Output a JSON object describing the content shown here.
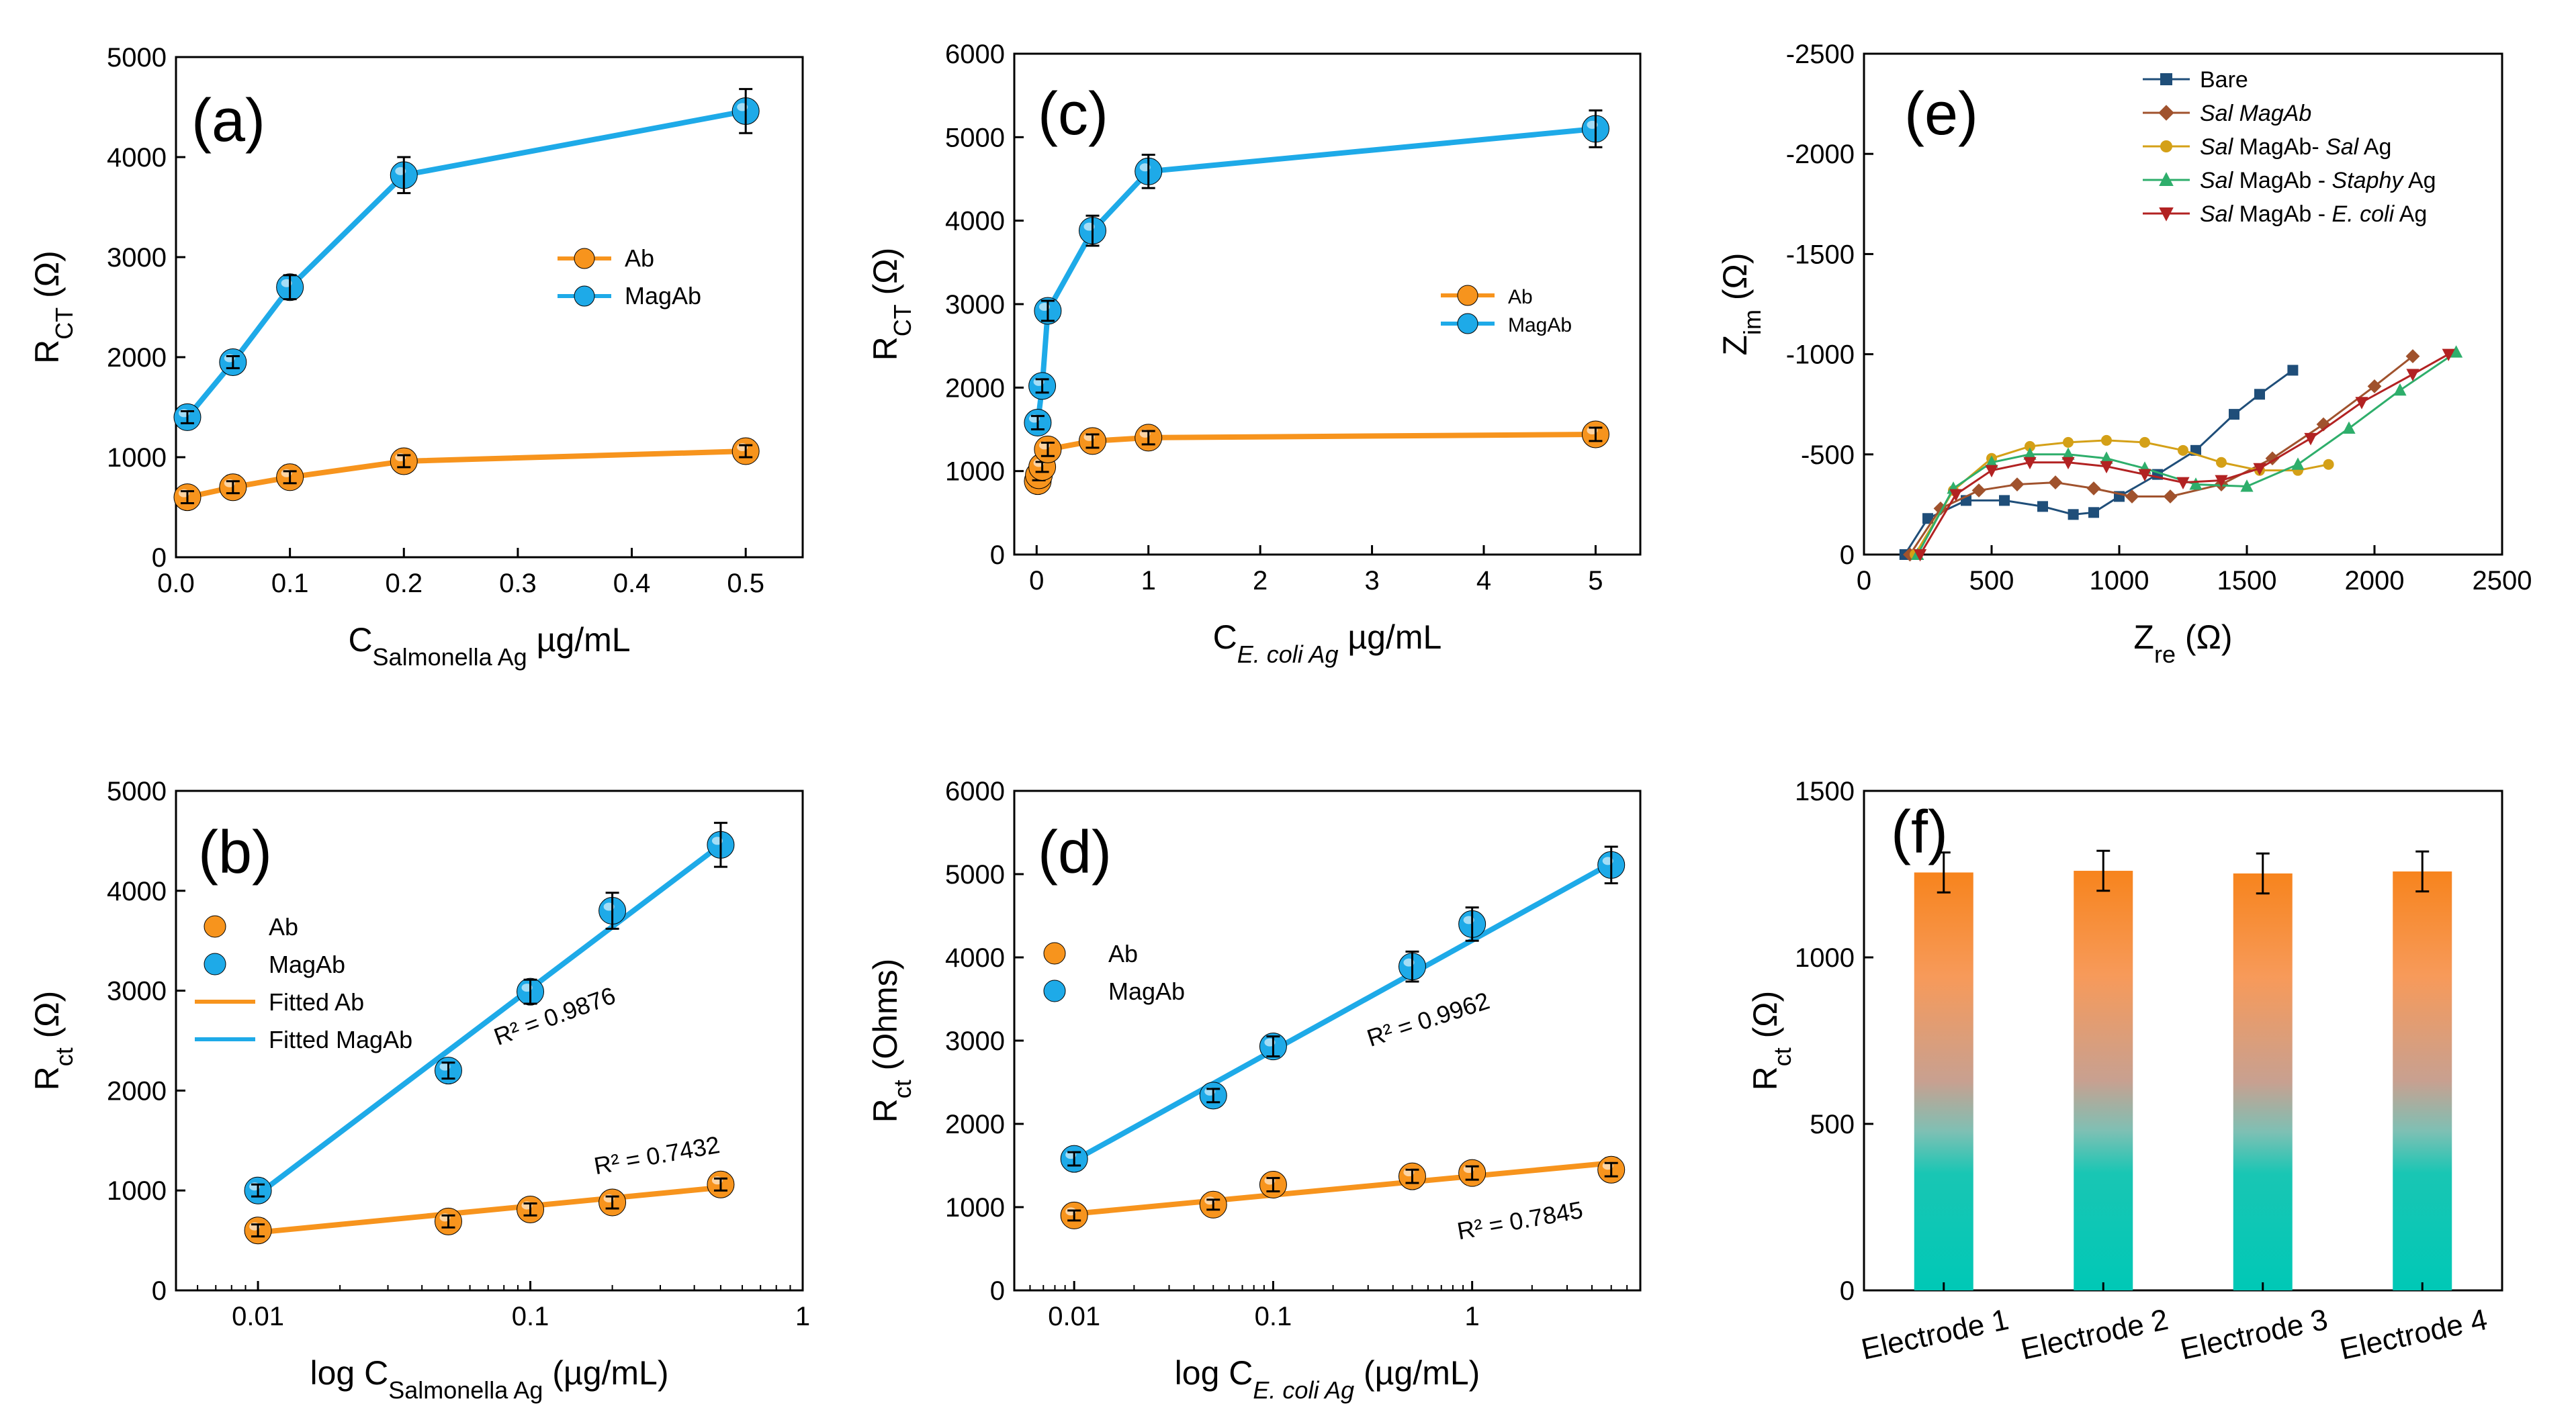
{
  "colors": {
    "orange": "#F7941D",
    "blue": "#1EAAE8",
    "navy": "#1F4E79",
    "brown": "#A0522D",
    "gold": "#D4A017",
    "green": "#2EAE6B",
    "darkred": "#B22222",
    "teal": "#00C2B2"
  },
  "chart_data": [
    {
      "id": "a",
      "label": "(a)",
      "type": "line",
      "xlabel": {
        "main": "C",
        "sub": "Salmonella Ag",
        "unit": " µg/mL"
      },
      "ylabel": {
        "main": "R",
        "sub": "CT",
        "unit": " (Ω)"
      },
      "xlim": [
        0,
        0.55
      ],
      "ylim": [
        0,
        5000
      ],
      "xticks": [
        0,
        0.1,
        0.2,
        0.3,
        0.4,
        0.5
      ],
      "xtick_labels": [
        "0.0",
        "0.1",
        "0.2",
        "0.3",
        "0.4",
        "0.5"
      ],
      "yticks": [
        0,
        1000,
        2000,
        3000,
        4000,
        5000
      ],
      "ytick_labels": [
        "0",
        "1000",
        "2000",
        "3000",
        "4000",
        "5000"
      ],
      "legend": {
        "position": "center-right",
        "entries": [
          "Ab",
          "MagAb"
        ]
      },
      "series": [
        {
          "name": "Ab",
          "color": "#F7941D",
          "x": [
            0.01,
            0.05,
            0.1,
            0.2,
            0.5
          ],
          "y": [
            600,
            700,
            800,
            960,
            1060
          ],
          "err": [
            60,
            60,
            60,
            60,
            60
          ]
        },
        {
          "name": "MagAb",
          "color": "#1EAAE8",
          "x": [
            0.01,
            0.05,
            0.1,
            0.2,
            0.5
          ],
          "y": [
            1400,
            1950,
            2700,
            3820,
            4460
          ],
          "err": [
            60,
            60,
            120,
            180,
            220
          ]
        }
      ]
    },
    {
      "id": "c",
      "label": "(c)",
      "type": "line",
      "xlabel": {
        "main": "C",
        "sub": "E. coli Ag",
        "unit": " µg/mL"
      },
      "ylabel": {
        "main": "R",
        "sub": "CT",
        "unit": " (Ω)"
      },
      "xlim": [
        -0.2,
        5.4
      ],
      "ylim": [
        0,
        6000
      ],
      "xticks": [
        0,
        1,
        2,
        3,
        4,
        5
      ],
      "xtick_labels": [
        "0",
        "1",
        "2",
        "3",
        "4",
        "5"
      ],
      "yticks": [
        0,
        1000,
        2000,
        3000,
        4000,
        5000,
        6000
      ],
      "ytick_labels": [
        "0",
        "1000",
        "2000",
        "3000",
        "4000",
        "5000",
        "6000"
      ],
      "legend": {
        "position": "center-right",
        "entries": [
          "Ab",
          "MagAb"
        ]
      },
      "series": [
        {
          "name": "Ab",
          "color": "#F7941D",
          "x": [
            0.01,
            0.02,
            0.05,
            0.1,
            0.5,
            1,
            5
          ],
          "y": [
            880,
            950,
            1050,
            1260,
            1360,
            1400,
            1440
          ],
          "err": [
            60,
            60,
            60,
            80,
            80,
            80,
            80
          ]
        },
        {
          "name": "MagAb",
          "color": "#1EAAE8",
          "x": [
            0.01,
            0.05,
            0.1,
            0.5,
            1,
            5
          ],
          "y": [
            1580,
            2020,
            2920,
            3880,
            4590,
            5100
          ],
          "err": [
            80,
            80,
            120,
            180,
            200,
            220
          ]
        }
      ]
    },
    {
      "id": "e",
      "label": "(e)",
      "type": "scatter",
      "xlabel": {
        "main": "Z",
        "sub": "re",
        "unit": " (Ω)"
      },
      "ylabel": {
        "main": "Z",
        "sub": "im",
        "unit": " (Ω)"
      },
      "xlim": [
        0,
        2500
      ],
      "ylim": [
        0,
        -2500
      ],
      "xticks": [
        0,
        500,
        1000,
        1500,
        2000,
        2500
      ],
      "xtick_labels": [
        "0",
        "500",
        "1000",
        "1500",
        "2000",
        "2500"
      ],
      "yticks": [
        0,
        -500,
        -1000,
        -1500,
        -2000,
        -2500
      ],
      "ytick_labels": [
        "0",
        "-500",
        "-1000",
        "-1500",
        "-2000",
        "-2500"
      ],
      "legend": {
        "position": "top-right",
        "entries": [
          "Bare",
          "Sal MagAb",
          "Sal MagAb- Sal Ag",
          "Sal MagAb - Staphy Ag",
          "Sal MagAb - E. coli Ag"
        ]
      },
      "series": [
        {
          "name": "Bare",
          "color": "#1F4E79",
          "marker": "square",
          "x": [
            160,
            250,
            400,
            550,
            700,
            820,
            900,
            1000,
            1150,
            1300,
            1450,
            1550,
            1680
          ],
          "y": [
            0,
            -180,
            -270,
            -270,
            -240,
            -200,
            -210,
            -290,
            -400,
            -520,
            -700,
            -800,
            -920
          ]
        },
        {
          "name": "Sal MagAb",
          "color": "#A0522D",
          "marker": "diamond",
          "x": [
            180,
            300,
            450,
            600,
            750,
            900,
            1050,
            1200,
            1400,
            1600,
            1800,
            2000,
            2150
          ],
          "y": [
            0,
            -230,
            -320,
            -350,
            -360,
            -330,
            -290,
            -290,
            -350,
            -480,
            -650,
            -840,
            -990
          ]
        },
        {
          "name": "Sal MagAb- Sal Ag",
          "color": "#D4A017",
          "marker": "circle",
          "x": [
            200,
            350,
            500,
            650,
            800,
            950,
            1100,
            1250,
            1400,
            1550,
            1700,
            1820
          ],
          "y": [
            0,
            -320,
            -480,
            -540,
            -560,
            -570,
            -560,
            -520,
            -460,
            -420,
            -420,
            -450
          ]
        },
        {
          "name": "Sal MagAb - Staphy Ag",
          "color": "#2EAE6B",
          "marker": "triangle-up",
          "x": [
            210,
            350,
            500,
            650,
            800,
            950,
            1100,
            1300,
            1500,
            1700,
            1900,
            2100,
            2320
          ],
          "y": [
            0,
            -330,
            -460,
            -500,
            -500,
            -480,
            -430,
            -350,
            -340,
            -450,
            -630,
            -820,
            -1010
          ]
        },
        {
          "name": "Sal MagAb - E. coli Ag",
          "color": "#B22222",
          "marker": "triangle-down",
          "x": [
            220,
            360,
            500,
            650,
            800,
            950,
            1100,
            1250,
            1400,
            1550,
            1750,
            1950,
            2150,
            2290
          ],
          "y": [
            0,
            -300,
            -420,
            -460,
            -460,
            -440,
            -400,
            -360,
            -370,
            -430,
            -580,
            -760,
            -900,
            -1000
          ]
        }
      ]
    },
    {
      "id": "b",
      "label": "(b)",
      "type": "scatter",
      "xscale": "log",
      "xlabel": {
        "main": "log C",
        "sub": "Salmonella Ag",
        "unit": " (µg/mL)"
      },
      "ylabel": {
        "main": "R",
        "sub": "ct",
        "unit": " (Ω)"
      },
      "xlim": [
        0.005,
        1
      ],
      "ylim": [
        0,
        5000
      ],
      "xticks": [
        0.01,
        0.1,
        1
      ],
      "xtick_labels": [
        "0.01",
        "0.1",
        "1"
      ],
      "yticks": [
        0,
        1000,
        2000,
        3000,
        4000,
        5000
      ],
      "ytick_labels": [
        "0",
        "1000",
        "2000",
        "3000",
        "4000",
        "5000"
      ],
      "legend": {
        "position": "top-left",
        "entries": [
          "Ab",
          "MagAb",
          "Fitted Ab",
          "Fitted MagAb"
        ]
      },
      "annotations": [
        "R² = 0.9876",
        "R² = 0.7432"
      ],
      "series": [
        {
          "name": "Ab",
          "color": "#F7941D",
          "x": [
            0.01,
            0.05,
            0.1,
            0.2,
            0.5
          ],
          "y": [
            600,
            690,
            810,
            880,
            1060
          ],
          "err": [
            60,
            60,
            60,
            60,
            60
          ]
        },
        {
          "name": "MagAb",
          "color": "#1EAAE8",
          "x": [
            0.01,
            0.05,
            0.1,
            0.2,
            0.5
          ],
          "y": [
            1000,
            2200,
            2990,
            3800,
            4460
          ],
          "err": [
            60,
            80,
            120,
            180,
            220
          ]
        },
        {
          "name": "Fitted Ab",
          "color": "#F7941D",
          "x": [
            0.01,
            0.5
          ],
          "y": [
            580,
            1030
          ]
        },
        {
          "name": "Fitted MagAb",
          "color": "#1EAAE8",
          "x": [
            0.01,
            0.5
          ],
          "y": [
            960,
            4460
          ]
        }
      ]
    },
    {
      "id": "d",
      "label": "(d)",
      "type": "scatter",
      "xscale": "log",
      "xlabel": {
        "main": "log C",
        "sub": "E. coli Ag",
        "unit": " (µg/mL)"
      },
      "ylabel": {
        "main": "R",
        "sub": "ct",
        "unit": " (Ohms)"
      },
      "xlim": [
        0.005,
        7
      ],
      "ylim": [
        0,
        6000
      ],
      "xticks": [
        0.01,
        0.1,
        1
      ],
      "xtick_labels": [
        "0.01",
        "0.1",
        "1"
      ],
      "yticks": [
        0,
        1000,
        2000,
        3000,
        4000,
        5000,
        6000
      ],
      "ytick_labels": [
        "0",
        "1000",
        "2000",
        "3000",
        "4000",
        "5000",
        "6000"
      ],
      "legend": {
        "position": "center-left",
        "entries": [
          "Ab",
          "MagAb"
        ]
      },
      "annotations": [
        "R² = 0.9962",
        "R² = 0.7845"
      ],
      "series": [
        {
          "name": "Ab",
          "color": "#F7941D",
          "x": [
            0.01,
            0.05,
            0.1,
            0.5,
            1,
            5
          ],
          "y": [
            900,
            1030,
            1270,
            1370,
            1410,
            1450
          ],
          "err": [
            60,
            60,
            80,
            80,
            80,
            80
          ]
        },
        {
          "name": "MagAb",
          "color": "#1EAAE8",
          "x": [
            0.01,
            0.05,
            0.1,
            0.5,
            1,
            5
          ],
          "y": [
            1580,
            2340,
            2930,
            3890,
            4400,
            5110
          ],
          "err": [
            80,
            80,
            120,
            180,
            200,
            220
          ]
        },
        {
          "name": "Fitted Ab",
          "color": "#F7941D",
          "x": [
            0.01,
            5
          ],
          "y": [
            920,
            1530
          ]
        },
        {
          "name": "Fitted MagAb",
          "color": "#1EAAE8",
          "x": [
            0.01,
            5
          ],
          "y": [
            1560,
            5130
          ]
        }
      ]
    },
    {
      "id": "f",
      "label": "(f)",
      "type": "bar",
      "xlabel": {
        "main": "",
        "sub": "",
        "unit": ""
      },
      "ylabel": {
        "main": "R",
        "sub": "ct",
        "unit": " (Ω)"
      },
      "ylim": [
        0,
        1500
      ],
      "yticks": [
        0,
        500,
        1000,
        1500
      ],
      "ytick_labels": [
        "0",
        "500",
        "1000",
        "1500"
      ],
      "categories": [
        "Electrode 1",
        "Electrode 2",
        "Electrode 3",
        "Electrode 4"
      ],
      "values": [
        1255,
        1260,
        1252,
        1258
      ],
      "err": [
        60,
        60,
        60,
        60
      ]
    }
  ]
}
